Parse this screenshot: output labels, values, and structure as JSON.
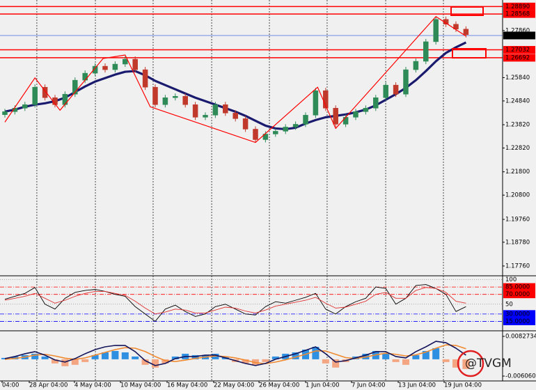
{
  "chart_data": [
    {
      "type": "candlestick",
      "x": [
        0,
        1,
        2,
        3,
        4,
        5,
        6,
        7,
        8,
        9,
        10,
        11,
        12,
        13,
        14,
        15,
        16,
        17,
        18,
        19,
        20,
        21,
        22,
        23,
        24,
        25,
        26,
        27,
        28,
        29,
        30,
        31,
        32,
        33,
        34,
        35,
        36,
        37,
        38,
        39,
        40,
        41,
        42,
        43,
        44,
        45,
        46
      ],
      "candles": [
        [
          1.2425,
          1.245,
          1.2413,
          1.2438
        ],
        [
          1.2438,
          1.2465,
          1.2426,
          1.2453
        ],
        [
          1.2453,
          1.248,
          1.2441,
          1.2468
        ],
        [
          1.2468,
          1.2555,
          1.2456,
          1.2543
        ],
        [
          1.2543,
          1.2555,
          1.2486,
          1.2498
        ],
        [
          1.2498,
          1.251,
          1.2456,
          1.2468
        ],
        [
          1.2468,
          1.2525,
          1.2456,
          1.2513
        ],
        [
          1.2513,
          1.2585,
          1.2501,
          1.2573
        ],
        [
          1.2573,
          1.2615,
          1.2561,
          1.2603
        ],
        [
          1.2603,
          1.2645,
          1.2591,
          1.2633
        ],
        [
          1.2633,
          1.2645,
          1.2606,
          1.2618
        ],
        [
          1.2618,
          1.2654,
          1.2606,
          1.2642
        ],
        [
          1.2642,
          1.2675,
          1.263,
          1.2663
        ],
        [
          1.2663,
          1.2675,
          1.2606,
          1.2618
        ],
        [
          1.2618,
          1.263,
          1.2531,
          1.2543
        ],
        [
          1.2543,
          1.2555,
          1.2456,
          1.2468
        ],
        [
          1.2468,
          1.251,
          1.2456,
          1.2498
        ],
        [
          1.2498,
          1.2516,
          1.2486,
          1.2504
        ],
        [
          1.2504,
          1.2516,
          1.2456,
          1.2468
        ],
        [
          1.2468,
          1.248,
          1.2402,
          1.2414
        ],
        [
          1.2414,
          1.2435,
          1.2402,
          1.2423
        ],
        [
          1.2423,
          1.248,
          1.2411,
          1.2468
        ],
        [
          1.2468,
          1.248,
          1.242,
          1.2432
        ],
        [
          1.2432,
          1.2444,
          1.2396,
          1.2408
        ],
        [
          1.2408,
          1.242,
          1.2351,
          1.2363
        ],
        [
          1.2363,
          1.2375,
          1.2306,
          1.2318
        ],
        [
          1.2318,
          1.2354,
          1.2306,
          1.2342
        ],
        [
          1.2342,
          1.2366,
          1.233,
          1.2354
        ],
        [
          1.2354,
          1.2384,
          1.2342,
          1.2372
        ],
        [
          1.2372,
          1.2396,
          1.236,
          1.2384
        ],
        [
          1.2384,
          1.2435,
          1.2372,
          1.2423
        ],
        [
          1.2423,
          1.254,
          1.2411,
          1.2528
        ],
        [
          1.2528,
          1.254,
          1.2441,
          1.2453
        ],
        [
          1.2453,
          1.2465,
          1.2372,
          1.2384
        ],
        [
          1.2384,
          1.2426,
          1.2372,
          1.2414
        ],
        [
          1.2414,
          1.245,
          1.2402,
          1.2438
        ],
        [
          1.2438,
          1.2465,
          1.2426,
          1.2453
        ],
        [
          1.2453,
          1.251,
          1.2441,
          1.2498
        ],
        [
          1.2498,
          1.2564,
          1.2486,
          1.2552
        ],
        [
          1.2552,
          1.2564,
          1.2501,
          1.2513
        ],
        [
          1.2513,
          1.263,
          1.2501,
          1.2618
        ],
        [
          1.2618,
          1.2666,
          1.2606,
          1.2654
        ],
        [
          1.2654,
          1.275,
          1.2642,
          1.2738
        ],
        [
          1.2738,
          1.2846,
          1.2726,
          1.2834
        ],
        [
          1.2834,
          1.2846,
          1.2801,
          1.2813
        ],
        [
          1.2813,
          1.2825,
          1.278,
          1.2792
        ],
        [
          1.2792,
          1.2804,
          1.2756,
          1.2768
        ]
      ],
      "up_color": "#2e8b57",
      "down_color": "#c0392b",
      "moving_average": {
        "color": "#1a1a6e",
        "values": [
          1.2438,
          1.2447,
          1.2459,
          1.2468,
          1.2474,
          1.2483,
          1.2498,
          1.2522,
          1.2546,
          1.2567,
          1.2582,
          1.2597,
          1.2609,
          1.2612,
          1.2594,
          1.257,
          1.2552,
          1.2534,
          1.2516,
          1.2498,
          1.2483,
          1.2468,
          1.2453,
          1.2438,
          1.242,
          1.2399,
          1.2378,
          1.2366,
          1.2363,
          1.2369,
          1.2387,
          1.2402,
          1.2414,
          1.242,
          1.2426,
          1.2435,
          1.2447,
          1.2465,
          1.2489,
          1.2513,
          1.254,
          1.2573,
          1.2612,
          1.2654,
          1.269,
          1.2714,
          1.2735
        ]
      },
      "zigzag": {
        "color": "#ff0000",
        "x": [
          0,
          3,
          5.5,
          9.8,
          12,
          14.5,
          25,
          31.2,
          33,
          43,
          46
        ],
        "values": [
          1.2393,
          1.2583,
          1.2444,
          1.2666,
          1.2681,
          1.2459,
          1.2306,
          1.2543,
          1.2366,
          1.2846,
          1.2762
        ]
      },
      "ylim": [
        1.1737,
        1.2902
      ],
      "yticks": [
        {
          "value": 1.2786,
          "label": "1.27860"
        },
        {
          "value": 1.2584,
          "label": "1.25840"
        },
        {
          "value": 1.2484,
          "label": "1.24840"
        },
        {
          "value": 1.2382,
          "label": "1.23820"
        },
        {
          "value": 1.2282,
          "label": "1.22820"
        },
        {
          "value": 1.218,
          "label": "1.21800"
        },
        {
          "value": 1.208,
          "label": "1.20800"
        },
        {
          "value": 1.1976,
          "label": "1.19760"
        },
        {
          "value": 1.1878,
          "label": "1.18780"
        },
        {
          "value": 1.1776,
          "label": "1.17760"
        }
      ],
      "levels": [
        {
          "value": 1.2889,
          "label": "1.28890"
        },
        1.28568,
        1.27032,
        1.26692
      ],
      "level_color": "#ff0000",
      "last_price": 1.27647,
      "last_price_color": "#4169e1",
      "xticks": [
        {
          "value": -0.28,
          "label": "04:00"
        },
        {
          "value": 2.43,
          "label": "28 Apr 04:00"
        },
        {
          "value": 6.94,
          "label": "4 May 04:00"
        },
        {
          "value": 11.53,
          "label": "10 May 04:00"
        },
        {
          "value": 16.18,
          "label": "16 May 04:00"
        },
        {
          "value": 20.83,
          "label": "22 May 04:00"
        },
        {
          "value": 25.35,
          "label": "26 May 04:00"
        },
        {
          "value": 30,
          "label": "1 Jun 04:00"
        },
        {
          "value": 34.58,
          "label": "7 Jun 04:00"
        },
        {
          "value": 39.24,
          "label": "13 Jun 04:00"
        },
        {
          "value": 43.82,
          "label": "19 Jun 04:00"
        }
      ],
      "xgrid": [
        3.19,
        9.03,
        14.79,
        20.63,
        26.39,
        32.15,
        37.99,
        43.75
      ]
    },
    {
      "type": "line",
      "ylim": [
        0,
        105
      ],
      "yticks": [
        100,
        {
          "value": 85,
          "label": "85.0000"
        },
        {
          "value": 70,
          "label": "70.0000"
        },
        50,
        {
          "value": 30,
          "label": "30.0000"
        },
        {
          "value": 15,
          "label": "15.0000"
        }
      ],
      "tick_colors": [
        "#909090",
        "#ff0000",
        "#ff0000",
        "#909090",
        "#0000ff",
        "#0000ff"
      ],
      "lines": [
        {
          "color": "#000000",
          "values": [
            60,
            66,
            72,
            84,
            50,
            40,
            62,
            74,
            78,
            80,
            76,
            70,
            66,
            45,
            30,
            15,
            40,
            48,
            35,
            25,
            30,
            45,
            50,
            40,
            30,
            28,
            45,
            55,
            52,
            58,
            64,
            72,
            40,
            30,
            45,
            55,
            62,
            85,
            82,
            50,
            62,
            88,
            90,
            82,
            70,
            35,
            45
          ]
        },
        {
          "color": "#e03030",
          "values": [
            58,
            62,
            66,
            72,
            62,
            52,
            58,
            66,
            72,
            76,
            76,
            72,
            68,
            56,
            42,
            30,
            34,
            40,
            38,
            32,
            32,
            38,
            44,
            42,
            36,
            32,
            38,
            46,
            50,
            54,
            58,
            64,
            52,
            42,
            44,
            50,
            56,
            70,
            74,
            62,
            62,
            78,
            84,
            82,
            74,
            56,
            52
          ]
        }
      ]
    },
    {
      "type": "macd",
      "ylim": [
        -0.0060604,
        0.0082734
      ],
      "yticks": [
        0.0082734,
        -0.0060604
      ],
      "histogram": {
        "color": "#2f8fe0",
        "negative_color": "#f4a582",
        "values": [
          0.0005,
          0.001,
          0.0015,
          0.002,
          0.001,
          -0.0015,
          -0.0025,
          -0.002,
          -0.001,
          0.0015,
          0.0025,
          0.003,
          0.0025,
          0.001,
          -0.002,
          -0.003,
          -0.0015,
          0.001,
          0.002,
          0.0015,
          0.0015,
          0.002,
          0.001,
          -0.001,
          -0.0015,
          -0.002,
          -0.001,
          0.001,
          0.002,
          0.0025,
          0.0035,
          0.0045,
          -0.0015,
          -0.003,
          -0.001,
          0.001,
          0.002,
          0.003,
          0.002,
          -0.001,
          -0.002,
          0.0015,
          0.003,
          0.004,
          -0.001,
          -0.003,
          -0.0035
        ]
      },
      "lines": [
        {
          "color": "#f08a30",
          "values": [
            0,
            0.0003,
            0.0008,
            0.0015,
            0.0018,
            0.0012,
            0.0004,
            0,
            0.0005,
            0.0015,
            0.0025,
            0.0035,
            0.0042,
            0.004,
            0.0028,
            0.001,
            -0.0005,
            -0.0008,
            -0.0003,
            0.0003,
            0.0008,
            0.0012,
            0.001,
            0.0005,
            -0.0003,
            -0.0012,
            -0.0016,
            -0.001,
            -0.0002,
            0.0008,
            0.0018,
            0.003,
            0.003,
            0.0018,
            0.0006,
            0.0003,
            0.0008,
            0.0016,
            0.0022,
            0.0018,
            0.0012,
            0.0016,
            0.0026,
            0.004,
            0.0052,
            0.005,
            0.0038
          ]
        },
        {
          "color": "#14145a",
          "values": [
            0.00025,
            0.001,
            0.002,
            0.00275,
            0.0015,
            -0.00025,
            -0.001,
            0.00025,
            0.002,
            0.0035,
            0.0045,
            0.005,
            0.005,
            0.00275,
            -0.0005,
            -0.00225,
            -0.0015,
            0.00025,
            0.001,
            0.001,
            0.0015,
            0.0015,
            0.0005,
            -0.0005,
            -0.0015,
            -0.00225,
            -0.0015,
            0,
            0.001,
            0.002,
            0.00325,
            0.0045,
            0.002,
            -0.001,
            -0.0005,
            0.0005,
            0.0015,
            0.00275,
            0.00275,
            0.001,
            0.0005,
            0.00275,
            0.0045,
            0.0065,
            0.006,
            0.004,
            0.0015
          ]
        }
      ]
    }
  ],
  "watermark": "@TVGM"
}
